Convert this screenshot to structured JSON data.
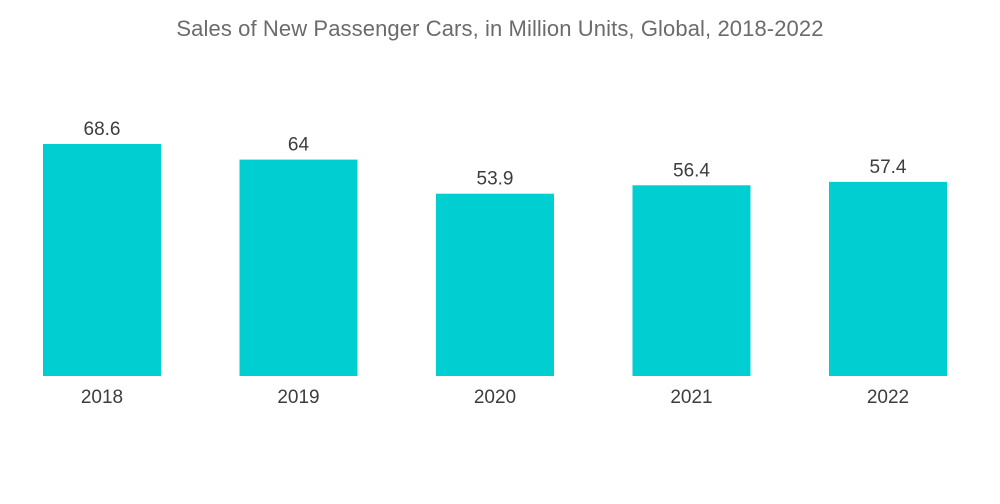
{
  "chart_data": {
    "type": "bar",
    "title": "Sales of New Passenger Cars, in Million Units, Global, 2018-2022",
    "xlabel": "",
    "ylabel": "",
    "categories": [
      "2018",
      "2019",
      "2020",
      "2021",
      "2022"
    ],
    "values": [
      68.6,
      64,
      53.9,
      56.4,
      57.4
    ],
    "data_labels": [
      "68.6",
      "64",
      "53.9",
      "56.4",
      "57.4"
    ],
    "ylim": [
      0,
      68.6
    ],
    "grid": false,
    "legend": "none",
    "bar_color": "#00ced1"
  }
}
